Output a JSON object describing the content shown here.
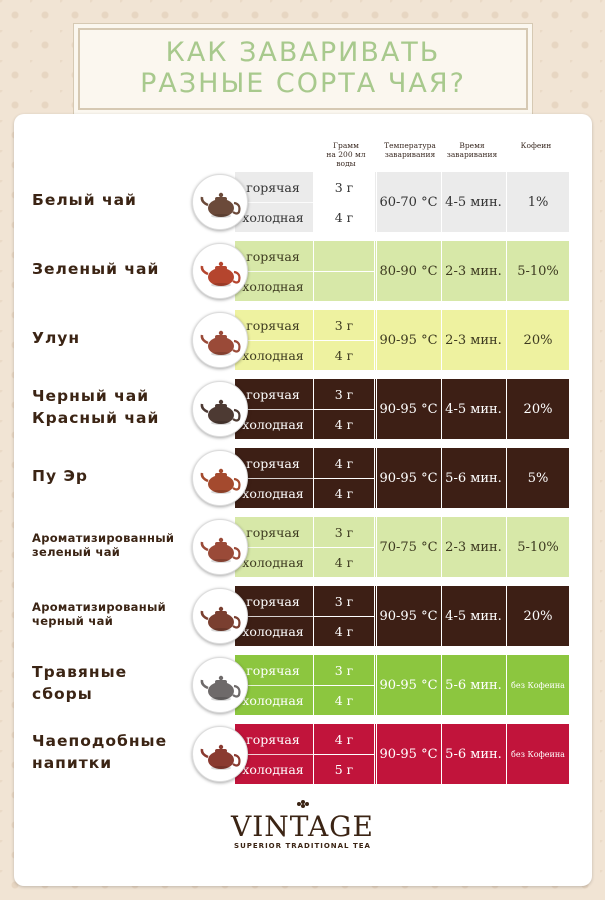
{
  "title": {
    "line1": "КАК ЗАВАРИВАТЬ",
    "line2": "РАЗНЫЕ СОРТА ЧАЯ?"
  },
  "headers": {
    "grams": [
      "Грамм",
      "на 200 мл воды"
    ],
    "temp": [
      "Температура",
      "заваривания"
    ],
    "time": [
      "Время",
      "заваривания"
    ],
    "caffeine": "Кофеин"
  },
  "rows": [
    {
      "name": [
        "Белый чай"
      ],
      "style": "light",
      "hot": "горячая",
      "cold": "холодная",
      "g_hot": "3 г",
      "g_cold": "4 г",
      "temp": "60-70 °С",
      "time": "4-5 мин.",
      "caffeine": "1%"
    },
    {
      "name": [
        "Зеленый чай"
      ],
      "style": "green_light",
      "hot": "горячая",
      "cold": "холодная",
      "g_hot": "",
      "g_cold": "",
      "temp": "80-90 °С",
      "time": "2-3 мин.",
      "caffeine": "5-10%"
    },
    {
      "name": [
        "Улун"
      ],
      "style": "yellow",
      "hot": "горячая",
      "cold": "холодная",
      "g_hot": "3 г",
      "g_cold": "4 г",
      "temp": "90-95 °С",
      "time": "2-3 мин.",
      "caffeine": "20%"
    },
    {
      "name": [
        "Черный чай",
        "Красный чай"
      ],
      "style": "dark",
      "hot": "горячая",
      "cold": "холодная",
      "g_hot": "3 г",
      "g_cold": "4 г",
      "temp": "90-95 °С",
      "time": "4-5 мин.",
      "caffeine": "20%"
    },
    {
      "name": [
        "Пу Эр"
      ],
      "style": "dark",
      "hot": "горячая",
      "cold": "холодная",
      "g_hot": "4 г",
      "g_cold": "4 г",
      "temp": "90-95 °С",
      "time": "5-6 мин.",
      "caffeine": "5%"
    },
    {
      "name": [
        "Ароматизированный",
        "зеленый чай"
      ],
      "style": "green_light",
      "hot": "горячая",
      "cold": "холодная",
      "g_hot": "3 г",
      "g_cold": "4 г",
      "temp": "70-75 °С",
      "time": "2-3 мин.",
      "caffeine": "5-10%"
    },
    {
      "name": [
        "Ароматизированый",
        "черный чай"
      ],
      "style": "dark",
      "hot": "горячая",
      "cold": "холодная",
      "g_hot": "3 г",
      "g_cold": "4 г",
      "temp": "90-95 °С",
      "time": "4-5 мин.",
      "caffeine": "20%"
    },
    {
      "name": [
        "Травяные",
        "сборы"
      ],
      "style": "green",
      "hot": "горячая",
      "cold": "холодная",
      "g_hot": "3 г",
      "g_cold": "4 г",
      "temp": "90-95 °С",
      "time": "5-6 мин.",
      "caffeine": "без Кофеина"
    },
    {
      "name": [
        "Чаеподобные",
        "напитки"
      ],
      "style": "red",
      "hot": "горячая",
      "cold": "холодная",
      "g_hot": "4 г",
      "g_cold": "5 г",
      "temp": "90-95 °С",
      "time": "5-6 мин.",
      "caffeine": "без Кофеина"
    }
  ],
  "logo": {
    "brand": "VINTAGE",
    "tagline": "SUPERIOR TRADITIONAL TEA"
  },
  "colors": {
    "title": "#a8c98d",
    "name": "#3b2414",
    "light": "#ebebeb",
    "green_light": "#d7e8a8",
    "yellow": "#eef2a0",
    "dark": "#3d1f15",
    "green": "#8cc63f",
    "red": "#c1143b"
  },
  "icons": [
    "teapot-icon",
    "vintage-ornament-icon"
  ]
}
